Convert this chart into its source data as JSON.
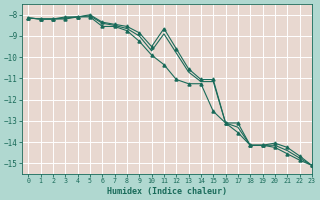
{
  "xlabel": "Humidex (Indice chaleur)",
  "ylabel": "",
  "figure_bg": "#b0d8d0",
  "axes_bg": "#e8d8d0",
  "grid_color": "#ffffff",
  "line_color": "#1a6b5a",
  "tick_color": "#1a6b5a",
  "xlim": [
    -0.5,
    23
  ],
  "ylim": [
    -15.5,
    -7.5
  ],
  "yticks": [
    -8,
    -9,
    -10,
    -11,
    -12,
    -13,
    -14,
    -15
  ],
  "xticks": [
    0,
    1,
    2,
    3,
    4,
    5,
    6,
    7,
    8,
    9,
    10,
    11,
    12,
    13,
    14,
    15,
    16,
    17,
    18,
    19,
    20,
    21,
    22,
    23
  ],
  "series1_x": [
    0,
    1,
    2,
    3,
    4,
    5,
    6,
    7,
    8,
    9,
    10,
    11,
    12,
    13,
    14,
    15,
    16,
    17,
    18,
    19,
    20,
    21,
    22,
    23
  ],
  "series1_y": [
    -8.15,
    -8.2,
    -8.2,
    -8.1,
    -8.1,
    -8.0,
    -8.35,
    -8.45,
    -8.55,
    -8.85,
    -9.5,
    -8.65,
    -9.6,
    -10.55,
    -11.05,
    -11.05,
    -13.1,
    -13.1,
    -14.15,
    -14.15,
    -14.05,
    -14.25,
    -14.65,
    -15.1
  ],
  "series2_x": [
    0,
    1,
    2,
    3,
    4,
    5,
    6,
    7,
    8,
    9,
    10,
    11,
    12,
    13,
    14,
    15,
    16,
    17,
    18,
    19,
    20,
    21,
    22,
    23
  ],
  "series2_y": [
    -8.15,
    -8.2,
    -8.2,
    -8.2,
    -8.1,
    -8.1,
    -8.55,
    -8.55,
    -8.75,
    -9.25,
    -9.9,
    -10.35,
    -11.05,
    -11.25,
    -11.25,
    -12.55,
    -13.1,
    -13.55,
    -14.15,
    -14.15,
    -14.25,
    -14.55,
    -14.85,
    -15.1
  ],
  "series3_x": [
    0,
    1,
    2,
    3,
    4,
    5,
    6,
    7,
    8,
    9,
    10,
    11,
    12,
    13,
    14,
    15,
    16,
    17,
    18,
    19,
    20,
    21,
    22,
    23
  ],
  "series3_y": [
    -8.15,
    -8.2,
    -8.2,
    -8.15,
    -8.1,
    -8.05,
    -8.4,
    -8.5,
    -8.65,
    -9.0,
    -9.7,
    -8.9,
    -9.8,
    -10.7,
    -11.15,
    -11.15,
    -13.1,
    -13.3,
    -14.15,
    -14.15,
    -14.15,
    -14.4,
    -14.75,
    -15.1
  ]
}
